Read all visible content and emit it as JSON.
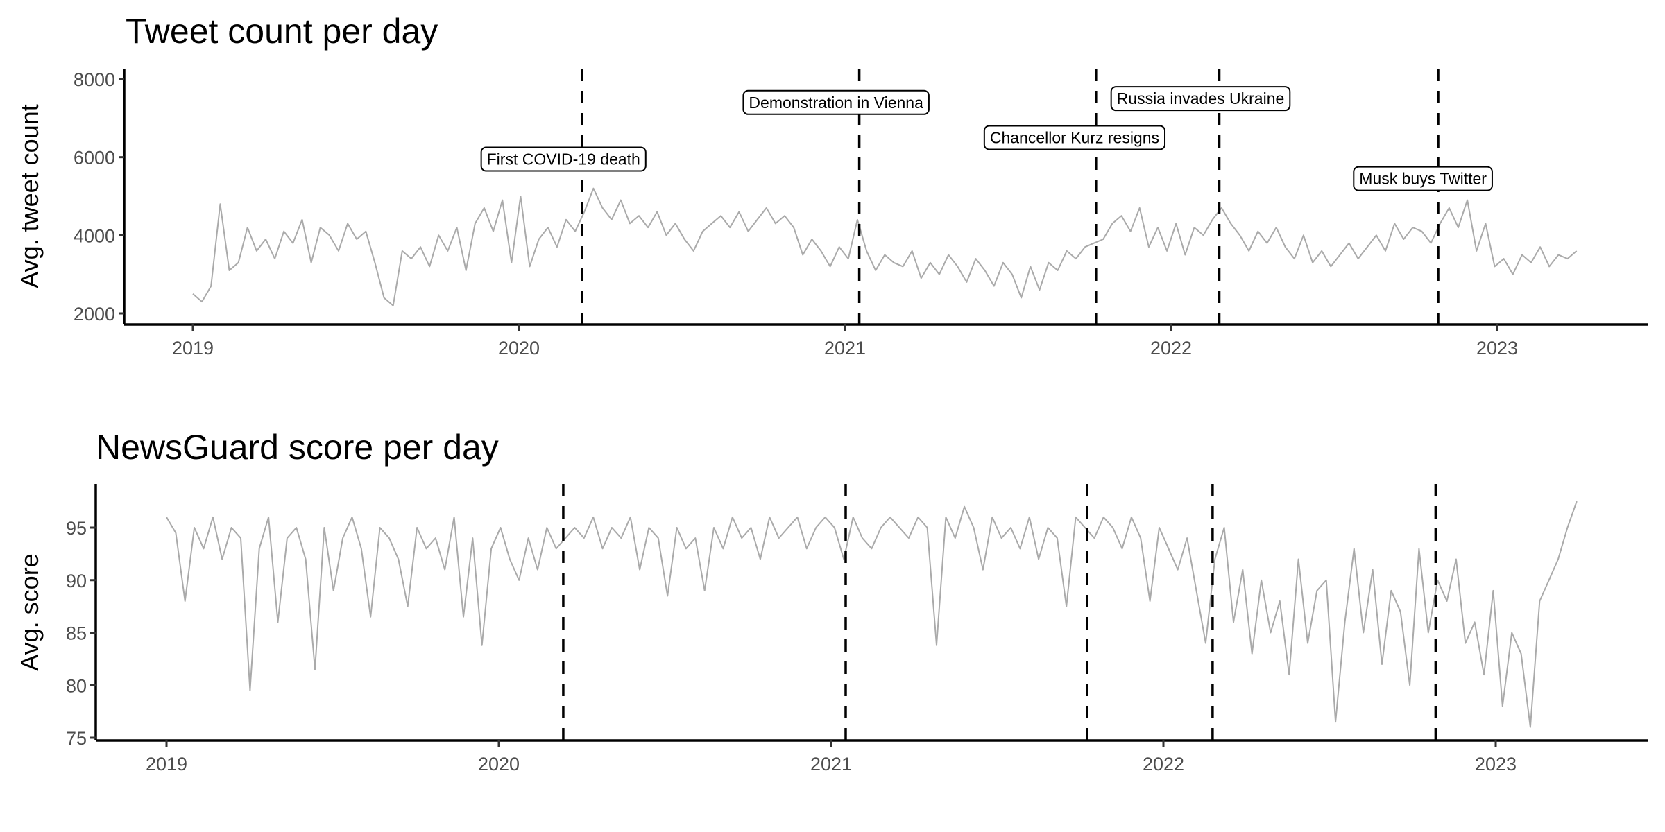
{
  "chart_data": [
    {
      "type": "line",
      "title": "Tweet count per day",
      "xlabel": "",
      "ylabel": "Avg. tweet count",
      "ylim": [
        1800,
        8300
      ],
      "yticks": [
        2000,
        4000,
        6000,
        8000
      ],
      "ytick_labels": [
        "2000",
        "4000",
        "6000",
        "8000"
      ],
      "xticks": [
        "2019",
        "2020",
        "2021",
        "2022",
        "2023"
      ],
      "grid": false,
      "line_color": "#aaaaaa",
      "series": [
        {
          "name": "Avg. tweet count",
          "start": "2019-01-01",
          "end": "2023-03-31",
          "values": [
            2500,
            2300,
            2700,
            4800,
            3100,
            3300,
            4200,
            3600,
            3900,
            3400,
            4100,
            3800,
            4400,
            3300,
            4200,
            4000,
            3600,
            4300,
            3900,
            4100,
            3300,
            2400,
            2200,
            3600,
            3400,
            3700,
            3200,
            4000,
            3600,
            4200,
            3100,
            4300,
            4700,
            4100,
            4900,
            3300,
            5000,
            3200,
            3900,
            4200,
            3700,
            4400,
            4100,
            4600,
            5200,
            4700,
            4400,
            4900,
            4300,
            4500,
            4200,
            4600,
            4000,
            4300,
            3900,
            3600,
            4100,
            4300,
            4500,
            4200,
            4600,
            4100,
            4400,
            4700,
            4300,
            4500,
            4200,
            3500,
            3900,
            3600,
            3200,
            3700,
            3400,
            4400,
            3600,
            3100,
            3500,
            3300,
            3200,
            3600,
            2900,
            3300,
            3000,
            3500,
            3200,
            2800,
            3400,
            3100,
            2700,
            3300,
            3000,
            2400,
            3200,
            2600,
            3300,
            3100,
            3600,
            3400,
            3700,
            3800,
            3900,
            4300,
            4500,
            4100,
            4700,
            3700,
            4200,
            3600,
            4300,
            3500,
            4200,
            4000,
            4400,
            4700,
            4300,
            4000,
            3600,
            4100,
            3800,
            4200,
            3700,
            3400,
            4000,
            3300,
            3600,
            3200,
            3500,
            3800,
            3400,
            3700,
            4000,
            3600,
            4300,
            3900,
            4200,
            4100,
            3800,
            4300,
            4700,
            4200,
            4900,
            3600,
            4300,
            3200,
            3400,
            3000,
            3500,
            3300,
            3700,
            3200,
            3500,
            3400,
            3600
          ]
        }
      ],
      "events": [
        {
          "date": "2020-03-12",
          "label": "First COVID-19 death",
          "label_date": "2020-02-20",
          "label_y": 5950
        },
        {
          "date": "2021-01-17",
          "label": "Demonstration in Vienna",
          "label_date": "2020-12-22",
          "label_y": 7400
        },
        {
          "date": "2021-10-09",
          "label": "Chancellor Kurz resigns",
          "label_date": "2021-09-15",
          "label_y": 6500
        },
        {
          "date": "2022-02-24",
          "label": "Russia invades Ukraine",
          "label_date": "2022-02-03",
          "label_y": 7500
        },
        {
          "date": "2022-10-27",
          "label": "Musk buys Twitter",
          "label_date": "2022-10-10",
          "label_y": 5450
        }
      ]
    },
    {
      "type": "line",
      "title": "NewsGuard score per day",
      "xlabel": "",
      "ylabel": "Avg. score",
      "ylim": [
        74.8,
        99.2
      ],
      "yticks": [
        75,
        80,
        85,
        90,
        95
      ],
      "ytick_labels": [
        "75",
        "80",
        "85",
        "90",
        "95"
      ],
      "xticks": [
        "2019",
        "2020",
        "2021",
        "2022",
        "2023"
      ],
      "grid": false,
      "line_color": "#aaaaaa",
      "series": [
        {
          "name": "Avg. score",
          "start": "2019-01-01",
          "end": "2023-03-31",
          "values": [
            96,
            94.5,
            88,
            95,
            93,
            96,
            92,
            95,
            94,
            79.5,
            93,
            96,
            86,
            94,
            95,
            92,
            81.5,
            95,
            89,
            94,
            96,
            93,
            86.5,
            95,
            94,
            92,
            87.5,
            95,
            93,
            94,
            91,
            96,
            86.5,
            94,
            83.8,
            93,
            95,
            92,
            90,
            94,
            91,
            95,
            93,
            94,
            95,
            94,
            96,
            93,
            95,
            94,
            96,
            91,
            95,
            94,
            88.5,
            95,
            93,
            94,
            89,
            95,
            93,
            96,
            94,
            95,
            92,
            96,
            94,
            95,
            96,
            93,
            95,
            96,
            95,
            92,
            96,
            94,
            93,
            95,
            96,
            95,
            94,
            96,
            95,
            83.8,
            96,
            94,
            97,
            95,
            91,
            96,
            94,
            95,
            93,
            96,
            92,
            95,
            94,
            87.5,
            96,
            95,
            94,
            96,
            95,
            93,
            96,
            94,
            88,
            95,
            93,
            91,
            94,
            89,
            84,
            92,
            95,
            86,
            91,
            83,
            90,
            85,
            88,
            81,
            92,
            84,
            89,
            90,
            76.5,
            86,
            93,
            85,
            91,
            82,
            89,
            87,
            80,
            93,
            85,
            90,
            88,
            92,
            84,
            86,
            81,
            89,
            78,
            85,
            83,
            76,
            88,
            90,
            92,
            95,
            97.5
          ]
        }
      ],
      "events": [
        {
          "date": "2020-03-12"
        },
        {
          "date": "2021-01-17"
        },
        {
          "date": "2021-10-09"
        },
        {
          "date": "2022-02-24"
        },
        {
          "date": "2022-10-27"
        }
      ]
    }
  ]
}
